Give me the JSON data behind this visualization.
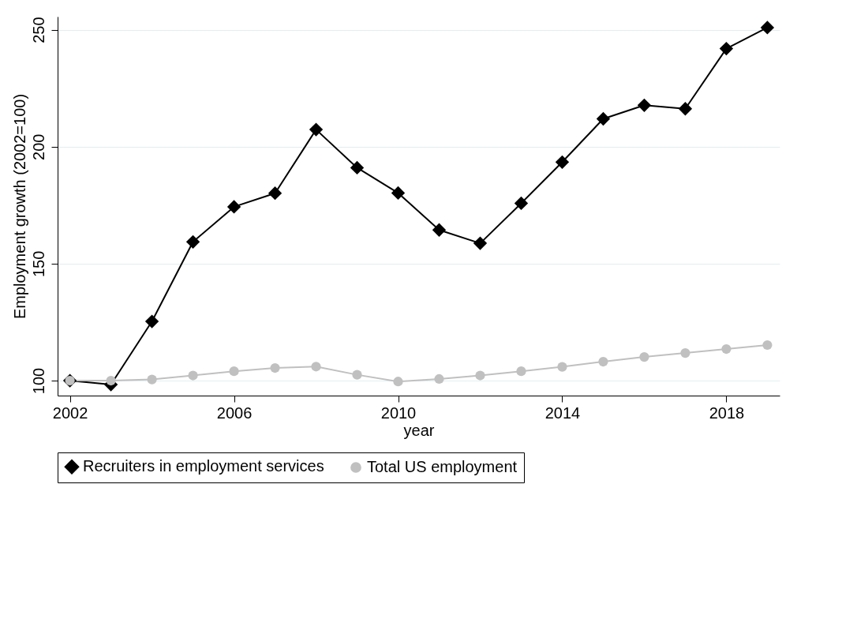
{
  "chart_data": {
    "type": "line",
    "xlabel": "year",
    "ylabel": "Employment growth (2002=100)",
    "x": [
      2002,
      2003,
      2004,
      2005,
      2006,
      2007,
      2008,
      2009,
      2010,
      2011,
      2012,
      2013,
      2014,
      2015,
      2016,
      2017,
      2018,
      2019
    ],
    "series": [
      {
        "name": "Recruiters in employment services",
        "color": "#000000",
        "marker": "diamond",
        "values": [
          100,
          98.3,
          125.3,
          159.3,
          174.3,
          180.1,
          207.3,
          191,
          180.2,
          164.4,
          158.7,
          175.8,
          193.4,
          211.9,
          217.7,
          216.2,
          241.9,
          250.9
        ]
      },
      {
        "name": "Total US employment",
        "color": "#c0c0c0",
        "marker": "circle",
        "values": [
          100,
          100,
          100.5,
          102.2,
          104,
          105.4,
          106,
          102.5,
          99.6,
          100.7,
          102.2,
          104,
          105.9,
          108.1,
          110.1,
          111.8,
          113.5,
          115.2
        ]
      }
    ],
    "xlim": [
      2001.7,
      2019.3
    ],
    "xticks": [
      2002,
      2006,
      2010,
      2014,
      2018
    ],
    "ylim": [
      93.6,
      255.6
    ],
    "yticks": [
      100,
      150,
      200,
      250
    ],
    "grid": "y",
    "legend": "bottom",
    "line_style": "solid"
  }
}
